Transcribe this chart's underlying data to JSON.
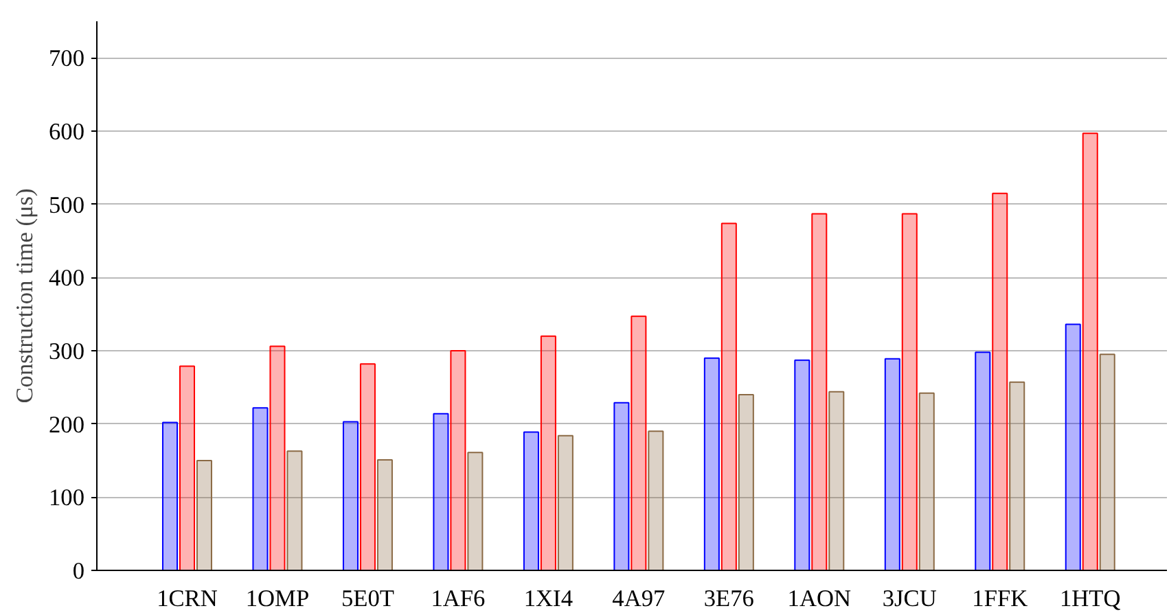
{
  "chart_data": {
    "type": "bar",
    "ylabel": "Construction time (μs)",
    "categories": [
      "1CRN",
      "1OMP",
      "5E0T",
      "1AF6",
      "1XI4",
      "4A97",
      "3E76",
      "1AON",
      "3JCU",
      "1FFK",
      "1HTQ"
    ],
    "series": [
      {
        "color": "#0000ff",
        "values": [
          202,
          222,
          203,
          214,
          189,
          229,
          290,
          287,
          289,
          298,
          336
        ]
      },
      {
        "color": "#ff0000",
        "values": [
          279,
          306,
          282,
          300,
          320,
          347,
          474,
          487,
          487,
          515,
          597
        ]
      },
      {
        "color": "#8b6a45",
        "values": [
          150,
          163,
          151,
          161,
          184,
          190,
          240,
          244,
          242,
          257,
          295
        ]
      }
    ],
    "ylim": [
      0,
      750
    ],
    "yticks": [
      0,
      100,
      200,
      300,
      400,
      500,
      600,
      700
    ],
    "grid": "y"
  }
}
